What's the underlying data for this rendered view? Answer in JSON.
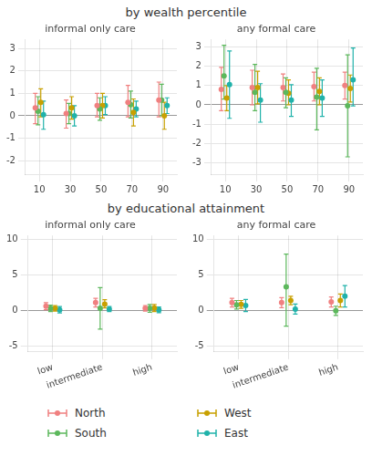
{
  "chart_data": [
    {
      "type": "scatter",
      "title": "by wealth percentile",
      "subtitle": "informal only care",
      "x": [
        10,
        30,
        50,
        70,
        90
      ],
      "xlim": [
        1,
        99
      ],
      "xticks": [
        10,
        30,
        50,
        70,
        90
      ],
      "ylim": [
        -2.6,
        3.4
      ],
      "yticks": [
        -2,
        -1,
        0,
        1,
        2,
        3
      ],
      "grid": true,
      "legend": "bottom",
      "series": [
        {
          "name": "North",
          "color": "#f08080",
          "values": [
            0.35,
            0.1,
            0.45,
            0.6,
            0.7
          ],
          "ylo": [
            -0.35,
            -0.55,
            -0.05,
            -0.05,
            -0.05
          ],
          "yhi": [
            1.0,
            0.7,
            1.0,
            1.35,
            1.5
          ]
        },
        {
          "name": "South",
          "color": "#5cb85c",
          "values": [
            0.2,
            0.1,
            0.3,
            0.5,
            0.7
          ],
          "ylo": [
            -0.4,
            -0.35,
            -0.2,
            -0.1,
            0.0
          ],
          "yhi": [
            0.85,
            0.55,
            0.8,
            1.1,
            1.4
          ]
        },
        {
          "name": "West",
          "color": "#c8a000",
          "values": [
            0.6,
            0.35,
            0.45,
            0.15,
            0.0
          ],
          "ylo": [
            -0.05,
            -0.15,
            -0.1,
            -0.45,
            -0.6
          ],
          "yhi": [
            1.2,
            0.85,
            1.0,
            0.75,
            0.6
          ]
        },
        {
          "name": "East",
          "color": "#20b2aa",
          "values": [
            0.05,
            0.0,
            0.45,
            0.3,
            0.45
          ],
          "ylo": [
            -0.6,
            -0.45,
            0.05,
            -0.05,
            0.1
          ],
          "yhi": [
            0.65,
            0.45,
            0.85,
            0.65,
            0.8
          ]
        }
      ]
    },
    {
      "type": "scatter",
      "subtitle": "any formal care",
      "x": [
        10,
        30,
        50,
        70,
        90
      ],
      "xlim": [
        1,
        99
      ],
      "xticks": [
        10,
        30,
        50,
        70,
        90
      ],
      "ylim": [
        -3.6,
        3.4
      ],
      "yticks": [
        -3,
        -2,
        -1,
        0,
        1,
        2,
        3
      ],
      "grid": true,
      "legend": "bottom",
      "series": [
        {
          "name": "North",
          "color": "#f08080",
          "values": [
            0.8,
            0.9,
            0.9,
            0.95,
            1.0
          ],
          "ylo": [
            -0.3,
            0.0,
            0.2,
            0.2,
            0.3
          ],
          "yhi": [
            1.95,
            1.8,
            1.6,
            1.7,
            1.7
          ]
        },
        {
          "name": "South",
          "color": "#5cb85c",
          "values": [
            1.5,
            0.65,
            0.65,
            0.4,
            -0.05
          ],
          "ylo": [
            0.3,
            -0.3,
            -0.15,
            -1.3,
            -2.7
          ],
          "yhi": [
            3.1,
            2.1,
            1.4,
            1.9,
            2.6
          ]
        },
        {
          "name": "West",
          "color": "#c8a000",
          "values": [
            0.35,
            0.9,
            0.6,
            0.7,
            0.85
          ],
          "ylo": [
            -0.3,
            0.05,
            0.0,
            0.0,
            0.15
          ],
          "yhi": [
            1.0,
            1.75,
            1.3,
            1.4,
            1.55
          ]
        },
        {
          "name": "East",
          "color": "#20b2aa",
          "values": [
            1.05,
            0.25,
            0.25,
            0.35,
            1.3
          ],
          "ylo": [
            -0.7,
            -0.9,
            -0.6,
            -0.6,
            -0.05
          ],
          "yhi": [
            2.8,
            1.1,
            1.05,
            1.3,
            2.95
          ]
        }
      ]
    },
    {
      "type": "scatter",
      "title": "by educational attainment",
      "subtitle": "informal only care",
      "categories": [
        "low",
        "intermediate",
        "high"
      ],
      "ylim": [
        -5.8,
        10.5
      ],
      "yticks": [
        -5,
        0,
        5,
        10
      ],
      "grid": true,
      "legend": "bottom",
      "series": [
        {
          "name": "North",
          "color": "#f08080",
          "values": [
            0.6,
            1.1,
            0.3
          ],
          "ylo": [
            0.1,
            0.5,
            -0.1
          ],
          "yhi": [
            1.1,
            1.7,
            0.7
          ]
        },
        {
          "name": "South",
          "color": "#5cb85c",
          "values": [
            0.3,
            0.3,
            0.3
          ],
          "ylo": [
            -0.15,
            -2.6,
            -0.25
          ],
          "yhi": [
            0.75,
            3.2,
            0.85
          ]
        },
        {
          "name": "West",
          "color": "#c8a000",
          "values": [
            0.3,
            0.9,
            0.35
          ],
          "ylo": [
            -0.1,
            0.35,
            -0.15
          ],
          "yhi": [
            0.7,
            1.5,
            0.85
          ]
        },
        {
          "name": "East",
          "color": "#20b2aa",
          "values": [
            0.1,
            0.2,
            0.1
          ],
          "ylo": [
            -0.35,
            -0.15,
            -0.3
          ],
          "yhi": [
            0.55,
            0.55,
            0.5
          ]
        }
      ]
    },
    {
      "type": "scatter",
      "subtitle": "any formal care",
      "categories": [
        "low",
        "intermediate",
        "high"
      ],
      "ylim": [
        -5.8,
        10.5
      ],
      "yticks": [
        -5,
        0,
        5,
        10
      ],
      "grid": true,
      "legend": "bottom",
      "series": [
        {
          "name": "North",
          "color": "#f08080",
          "values": [
            1.1,
            1.1,
            1.2
          ],
          "ylo": [
            0.5,
            0.4,
            0.5
          ],
          "yhi": [
            1.7,
            1.8,
            1.9
          ]
        },
        {
          "name": "South",
          "color": "#5cb85c",
          "values": [
            0.8,
            3.3,
            -0.05
          ],
          "ylo": [
            0.2,
            -2.2,
            -0.7
          ],
          "yhi": [
            1.4,
            7.9,
            0.6
          ]
        },
        {
          "name": "West",
          "color": "#c8a000",
          "values": [
            0.85,
            1.4,
            1.4
          ],
          "ylo": [
            0.3,
            0.8,
            0.5
          ],
          "yhi": [
            1.4,
            2.0,
            2.3
          ]
        },
        {
          "name": "East",
          "color": "#20b2aa",
          "values": [
            0.7,
            0.2,
            2.0
          ],
          "ylo": [
            -0.15,
            -0.5,
            0.5
          ],
          "yhi": [
            1.55,
            0.9,
            3.5
          ]
        }
      ]
    }
  ]
}
